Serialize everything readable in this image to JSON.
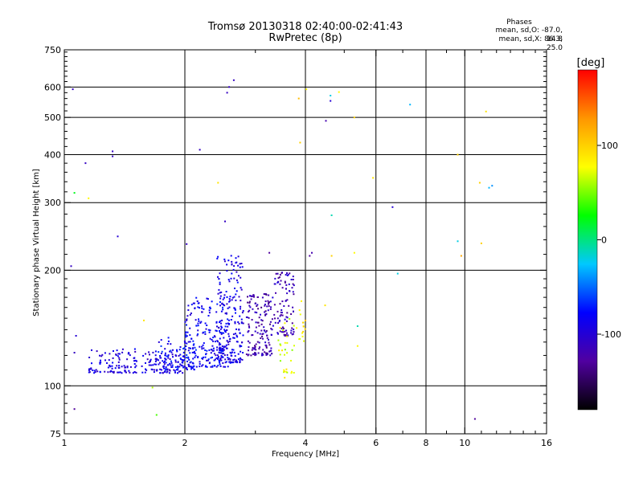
{
  "header": {
    "title": "Tromsø 20130318 02:40:00-02:41:43",
    "subtitle": "RwPretec (8p)"
  },
  "stats": {
    "heading": "Phases",
    "line_o": "mean, sd,O: -87.0, 14.8",
    "line_x": "mean, sd,X: 86.3, 25.0"
  },
  "chart_data": {
    "type": "scatter",
    "title": "Tromsø 20130318 02:40:00-02:41:43",
    "subtitle": "RwPretec (8p)",
    "xlabel": "Frequency [MHz]",
    "ylabel": "Stationary phase Virtual Height [km]",
    "xscale": "log",
    "yscale": "log",
    "xlim": [
      1,
      16
    ],
    "ylim": [
      75,
      750
    ],
    "xticks": [
      1,
      2,
      4,
      6,
      8,
      10,
      16
    ],
    "yticks": [
      75,
      100,
      200,
      300,
      400,
      500,
      600,
      750
    ],
    "x_gridlines": [
      2,
      4,
      6,
      8,
      10
    ],
    "y_gridlines": [
      100,
      200,
      300,
      400,
      500,
      600
    ],
    "grid": true,
    "colorbar": {
      "label": "[deg]",
      "range": [
        -180,
        180
      ],
      "ticks": [
        -100,
        0,
        100
      ],
      "colors": [
        "#000000",
        "#5000a0",
        "#0000ff",
        "#00c8ff",
        "#00ff00",
        "#ffff00",
        "#ff9600",
        "#ff0000"
      ]
    },
    "clusters": [
      {
        "x_range": [
          1.15,
          2.0
        ],
        "y_range": [
          108,
          125
        ],
        "n": 200,
        "phase": -95
      },
      {
        "x_range": [
          1.7,
          2.15
        ],
        "y_range": [
          110,
          135
        ],
        "n": 80,
        "phase": -80
      },
      {
        "x_range": [
          2.0,
          2.6
        ],
        "y_range": [
          112,
          170
        ],
        "n": 220,
        "phase": -85
      },
      {
        "x_range": [
          2.4,
          2.8
        ],
        "y_range": [
          115,
          220
        ],
        "n": 200,
        "phase": -90
      },
      {
        "x_range": [
          2.85,
          3.3
        ],
        "y_range": [
          120,
          175
        ],
        "n": 150,
        "phase": -120
      },
      {
        "x_range": [
          3.3,
          3.75
        ],
        "y_range": [
          135,
          200
        ],
        "n": 100,
        "phase": -115
      },
      {
        "x_range": [
          3.4,
          3.8
        ],
        "y_range": [
          108,
          150
        ],
        "n": 30,
        "phase": 70
      },
      {
        "x_range": [
          3.8,
          4.0
        ],
        "y_range": [
          130,
          170
        ],
        "n": 15,
        "phase": 80
      }
    ],
    "points": [
      {
        "x": 1.05,
        "y": 592,
        "phase": -110
      },
      {
        "x": 1.13,
        "y": 380,
        "phase": -110
      },
      {
        "x": 1.15,
        "y": 308,
        "phase": 80
      },
      {
        "x": 1.04,
        "y": 205,
        "phase": -110
      },
      {
        "x": 1.06,
        "y": 318,
        "phase": 20
      },
      {
        "x": 1.06,
        "y": 122,
        "phase": -110
      },
      {
        "x": 1.07,
        "y": 135,
        "phase": -100
      },
      {
        "x": 1.06,
        "y": 87,
        "phase": -130
      },
      {
        "x": 1.32,
        "y": 408,
        "phase": -110
      },
      {
        "x": 1.32,
        "y": 396,
        "phase": -110
      },
      {
        "x": 1.36,
        "y": 245,
        "phase": -100
      },
      {
        "x": 1.58,
        "y": 148,
        "phase": 90
      },
      {
        "x": 1.66,
        "y": 99,
        "phase": 60
      },
      {
        "x": 1.7,
        "y": 84,
        "phase": 40
      },
      {
        "x": 2.02,
        "y": 234,
        "phase": -110
      },
      {
        "x": 2.18,
        "y": 412,
        "phase": -110
      },
      {
        "x": 2.42,
        "y": 338,
        "phase": 90
      },
      {
        "x": 2.52,
        "y": 268,
        "phase": -110
      },
      {
        "x": 2.55,
        "y": 580,
        "phase": -110
      },
      {
        "x": 2.58,
        "y": 600,
        "phase": -110
      },
      {
        "x": 2.65,
        "y": 625,
        "phase": -110
      },
      {
        "x": 3.25,
        "y": 222,
        "phase": -130
      },
      {
        "x": 3.55,
        "y": 105,
        "phase": 90
      },
      {
        "x": 3.85,
        "y": 560,
        "phase": 110
      },
      {
        "x": 3.88,
        "y": 430,
        "phase": 100
      },
      {
        "x": 4.02,
        "y": 592,
        "phase": 80
      },
      {
        "x": 4.0,
        "y": 148,
        "phase": 110
      },
      {
        "x": 4.1,
        "y": 218,
        "phase": -130
      },
      {
        "x": 4.15,
        "y": 222,
        "phase": -120
      },
      {
        "x": 4.5,
        "y": 490,
        "phase": -120
      },
      {
        "x": 4.62,
        "y": 552,
        "phase": -100
      },
      {
        "x": 4.62,
        "y": 570,
        "phase": -20
      },
      {
        "x": 4.65,
        "y": 278,
        "phase": -10
      },
      {
        "x": 4.65,
        "y": 218,
        "phase": 100
      },
      {
        "x": 4.48,
        "y": 162,
        "phase": 90
      },
      {
        "x": 4.85,
        "y": 582,
        "phase": 80
      },
      {
        "x": 5.3,
        "y": 500,
        "phase": 100
      },
      {
        "x": 5.3,
        "y": 222,
        "phase": 80
      },
      {
        "x": 5.4,
        "y": 143,
        "phase": -10
      },
      {
        "x": 5.4,
        "y": 127,
        "phase": 80
      },
      {
        "x": 5.9,
        "y": 348,
        "phase": 90
      },
      {
        "x": 6.6,
        "y": 292,
        "phase": -100
      },
      {
        "x": 6.8,
        "y": 196,
        "phase": -20
      },
      {
        "x": 7.3,
        "y": 540,
        "phase": -30
      },
      {
        "x": 9.6,
        "y": 400,
        "phase": 100
      },
      {
        "x": 9.6,
        "y": 238,
        "phase": -20
      },
      {
        "x": 9.8,
        "y": 218,
        "phase": 120
      },
      {
        "x": 10.6,
        "y": 82,
        "phase": -130
      },
      {
        "x": 10.9,
        "y": 338,
        "phase": 100
      },
      {
        "x": 11.0,
        "y": 235,
        "phase": 100
      },
      {
        "x": 11.3,
        "y": 518,
        "phase": 90
      },
      {
        "x": 11.5,
        "y": 328,
        "phase": -30
      },
      {
        "x": 11.7,
        "y": 332,
        "phase": -40
      }
    ]
  }
}
